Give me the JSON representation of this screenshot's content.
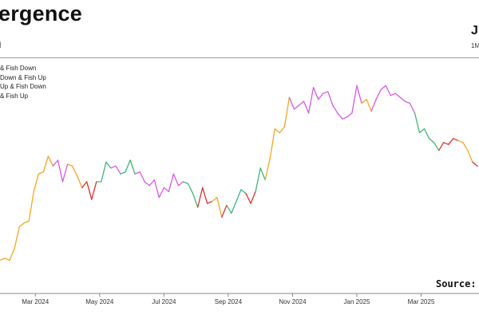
{
  "header": {
    "title": "ergence",
    "subtitle_left": "l",
    "corner_letter": "J",
    "corner_sub": "1M"
  },
  "legend": {
    "items": [
      {
        "label": "& Fish Down",
        "color": "#c96f00"
      },
      {
        "label": "Down & Fish Up",
        "color": "#c96f00"
      },
      {
        "label": "Up & Fish Down",
        "color": "#c96f00"
      },
      {
        "label": "& Fish Up",
        "color": "#c96f00"
      }
    ]
  },
  "source_label": "Source:",
  "chart_data": {
    "type": "line",
    "title": "",
    "xlabel": "",
    "ylabel": "",
    "x_ticks": [
      "Mar 2024",
      "May 2024",
      "Jul 2024",
      "Sep 2024",
      "Nov 2024",
      "Jan 2025",
      "Mar 2025"
    ],
    "x_tick_positions": [
      1.1,
      3.1,
      5.1,
      7.1,
      9.1,
      11.1,
      13.1
    ],
    "xlim": [
      0,
      14.9
    ],
    "ylim": [
      0,
      100
    ],
    "grid": false,
    "legend_position": "top-left",
    "state_colors": {
      "orange": "#f5a623",
      "red": "#e0302e",
      "green": "#3cb878",
      "magenta": "#d65ae8"
    },
    "series": [
      {
        "x": [
          0,
          0.15,
          0.3,
          0.45,
          0.6,
          0.75,
          0.9,
          1.05,
          1.2,
          1.35,
          1.5,
          1.65,
          1.8,
          1.95,
          2.1,
          2.25,
          2.4,
          2.55,
          2.7,
          2.85,
          3.0,
          3.15,
          3.3,
          3.45,
          3.6,
          3.75,
          3.9,
          4.05,
          4.2,
          4.35,
          4.5,
          4.65,
          4.8,
          4.95,
          5.1,
          5.25,
          5.4,
          5.55,
          5.7,
          5.85,
          6.0,
          6.15,
          6.3,
          6.45,
          6.6,
          6.75,
          6.9,
          7.05,
          7.2,
          7.35,
          7.5,
          7.65,
          7.8,
          7.95,
          8.1,
          8.25,
          8.4,
          8.55,
          8.7,
          8.85,
          9.0,
          9.15,
          9.3,
          9.45,
          9.6,
          9.75,
          9.9,
          10.05,
          10.2,
          10.35,
          10.5,
          10.65,
          10.8,
          10.95,
          11.1,
          11.25,
          11.4,
          11.55,
          11.7,
          11.85,
          12.0,
          12.15,
          12.3,
          12.45,
          12.6,
          12.75,
          12.9,
          13.05,
          13.2,
          13.35,
          13.5,
          13.65,
          13.8,
          13.95,
          14.1,
          14.25,
          14.4,
          14.55,
          14.7,
          14.85
        ],
        "y": [
          8,
          9,
          8,
          14,
          25,
          27,
          28,
          43,
          52,
          53,
          61,
          56,
          59,
          48,
          57,
          56,
          51,
          45,
          48,
          39,
          48,
          48,
          58,
          55,
          56,
          52,
          53,
          59,
          52,
          53,
          48,
          46,
          49,
          40,
          45,
          43,
          52,
          46,
          48,
          47,
          42,
          35,
          45,
          37,
          38,
          40,
          30,
          36,
          32,
          38,
          44,
          42,
          37,
          43,
          55,
          49,
          60,
          75,
          73,
          76,
          91,
          85,
          87,
          89,
          83,
          96,
          90,
          93,
          94,
          87,
          83,
          80,
          81,
          83,
          97,
          88,
          90,
          84,
          90,
          95,
          97,
          92,
          93,
          91,
          89,
          88,
          83,
          73,
          75,
          70,
          68,
          64,
          68,
          67,
          70,
          69,
          68,
          64,
          58,
          56
        ],
        "states": [
          "orange",
          "orange",
          "orange",
          "orange",
          "orange",
          "orange",
          "orange",
          "orange",
          "orange",
          "orange",
          "orange",
          "magenta",
          "magenta",
          "magenta",
          "orange",
          "orange",
          "orange",
          "red",
          "red",
          "red",
          "green",
          "green",
          "green",
          "magenta",
          "magenta",
          "green",
          "green",
          "green",
          "magenta",
          "magenta",
          "magenta",
          "magenta",
          "magenta",
          "magenta",
          "magenta",
          "magenta",
          "magenta",
          "magenta",
          "green",
          "green",
          "green",
          "red",
          "red",
          "red",
          "orange",
          "orange",
          "red",
          "green",
          "green",
          "green",
          "green",
          "red",
          "red",
          "green",
          "green",
          "orange",
          "orange",
          "orange",
          "orange",
          "orange",
          "magenta",
          "magenta",
          "magenta",
          "magenta",
          "magenta",
          "magenta",
          "magenta",
          "magenta",
          "magenta",
          "magenta",
          "magenta",
          "magenta",
          "magenta",
          "magenta",
          "magenta",
          "orange",
          "orange",
          "magenta",
          "magenta",
          "magenta",
          "magenta",
          "magenta",
          "magenta",
          "magenta",
          "magenta",
          "magenta",
          "green",
          "green",
          "green",
          "green",
          "green",
          "red",
          "red",
          "red",
          "red",
          "orange",
          "orange",
          "orange",
          "red",
          "red"
        ]
      }
    ]
  }
}
